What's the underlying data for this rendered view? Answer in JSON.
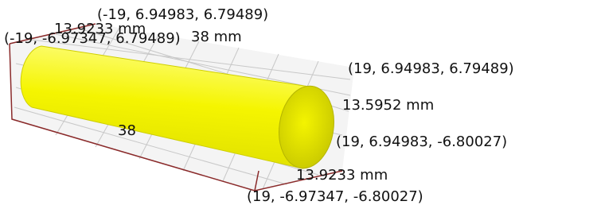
{
  "labels": {
    "corner_top_left_back": "(-19, 6.94983, 6.79489)",
    "width_top": "13.9233 mm",
    "corner_top_left_front": "(-19, -6.97347, 6.79489)",
    "length_top": "38 mm",
    "corner_top_right_back": "(19, 6.94983, 6.79489)",
    "height_right": "13.5952 mm",
    "corner_bottom_right_back": "(19, 6.94983, -6.80027)",
    "width_bottom": "13.9233 mm",
    "corner_bottom_right_front": "(19, -6.97347, -6.80027)",
    "length_bottom": "38"
  }
}
